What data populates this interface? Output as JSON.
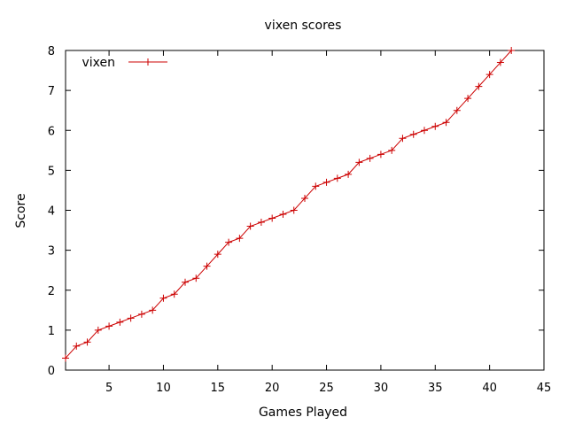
{
  "chart_data": {
    "type": "line",
    "title": "vixen scores",
    "xlabel": "Games Played",
    "ylabel": "Score",
    "xlim": [
      1,
      45
    ],
    "ylim": [
      0,
      8
    ],
    "xticks": [
      5,
      10,
      15,
      20,
      25,
      30,
      35,
      40,
      45
    ],
    "yticks": [
      0,
      1,
      2,
      3,
      4,
      5,
      6,
      7,
      8
    ],
    "grid": false,
    "legend_position": "top-left",
    "series": [
      {
        "name": "vixen",
        "color": "#cc0000",
        "marker": "plus",
        "x": [
          1,
          2,
          3,
          4,
          5,
          6,
          7,
          8,
          9,
          10,
          11,
          12,
          13,
          14,
          15,
          16,
          17,
          18,
          19,
          20,
          21,
          22,
          23,
          24,
          25,
          26,
          27,
          28,
          29,
          30,
          31,
          32,
          33,
          34,
          35,
          36,
          37,
          38,
          39,
          40,
          41,
          42
        ],
        "y": [
          0.3,
          0.6,
          0.7,
          1.0,
          1.1,
          1.2,
          1.3,
          1.4,
          1.5,
          1.8,
          1.9,
          2.2,
          2.3,
          2.6,
          2.9,
          3.2,
          3.3,
          3.6,
          3.7,
          3.8,
          3.9,
          4.0,
          4.3,
          4.6,
          4.7,
          4.8,
          4.9,
          5.2,
          5.3,
          5.4,
          5.5,
          5.8,
          5.9,
          6.0,
          6.1,
          6.2,
          6.5,
          6.8,
          7.1,
          7.4,
          7.7,
          8.0
        ]
      }
    ]
  }
}
